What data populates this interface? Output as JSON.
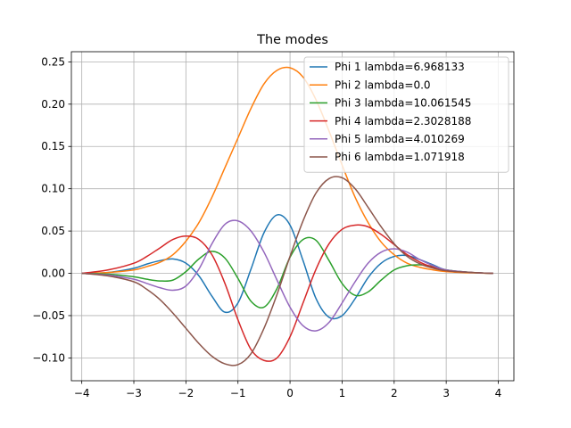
{
  "chart_data": {
    "type": "line",
    "title": "The modes",
    "xlabel": "",
    "ylabel": "",
    "xlim": [
      -4.2,
      4.3
    ],
    "ylim": [
      -0.127,
      0.262
    ],
    "xticks": [
      -4,
      -3,
      -2,
      -1,
      0,
      1,
      2,
      3,
      4
    ],
    "xtick_labels": [
      "−4",
      "−3",
      "−2",
      "−1",
      "0",
      "1",
      "2",
      "3",
      "4"
    ],
    "yticks": [
      -0.1,
      -0.05,
      0.0,
      0.05,
      0.1,
      0.15,
      0.2,
      0.25
    ],
    "ytick_labels": [
      "−0.10",
      "−0.05",
      "0.00",
      "0.05",
      "0.10",
      "0.15",
      "0.20",
      "0.25"
    ],
    "grid": true,
    "legend_position": "top-right",
    "x": [
      -4.0,
      -3.5,
      -3.0,
      -2.75,
      -2.5,
      -2.25,
      -2.0,
      -1.75,
      -1.5,
      -1.25,
      -1.0,
      -0.75,
      -0.5,
      -0.25,
      0.0,
      0.25,
      0.5,
      0.75,
      1.0,
      1.25,
      1.5,
      1.75,
      2.0,
      2.25,
      2.5,
      2.75,
      3.0,
      3.5,
      3.9
    ],
    "series": [
      {
        "name": "Phi 1 lambda=6.968133",
        "color": "#1f77b4",
        "values": [
          0.0,
          0.001,
          0.006,
          0.011,
          0.015,
          0.017,
          0.012,
          -0.003,
          -0.027,
          -0.046,
          -0.035,
          0.005,
          0.048,
          0.069,
          0.057,
          0.015,
          -0.03,
          -0.052,
          -0.05,
          -0.03,
          -0.005,
          0.012,
          0.02,
          0.021,
          0.016,
          0.01,
          0.004,
          0.001,
          0.0
        ]
      },
      {
        "name": "Phi 2 lambda=0.0",
        "color": "#ff7f0e",
        "values": [
          0.0,
          0.001,
          0.004,
          0.008,
          0.013,
          0.022,
          0.038,
          0.06,
          0.09,
          0.125,
          0.16,
          0.195,
          0.224,
          0.24,
          0.243,
          0.232,
          0.205,
          0.168,
          0.128,
          0.09,
          0.06,
          0.037,
          0.022,
          0.012,
          0.007,
          0.004,
          0.002,
          0.0005,
          0.0
        ]
      },
      {
        "name": "Phi 3 lambda=10.061545",
        "color": "#2ca02c",
        "values": [
          0.0,
          -0.001,
          -0.004,
          -0.007,
          -0.009,
          -0.008,
          0.002,
          0.017,
          0.026,
          0.018,
          -0.006,
          -0.033,
          -0.04,
          -0.018,
          0.019,
          0.04,
          0.039,
          0.015,
          -0.012,
          -0.026,
          -0.022,
          -0.008,
          0.004,
          0.009,
          0.01,
          0.008,
          0.004,
          0.001,
          0.0
        ]
      },
      {
        "name": "Phi 4 lambda=2.3028188",
        "color": "#d62728",
        "values": [
          0.0,
          0.004,
          0.012,
          0.02,
          0.03,
          0.04,
          0.044,
          0.04,
          0.022,
          -0.012,
          -0.055,
          -0.09,
          -0.103,
          -0.1,
          -0.075,
          -0.035,
          0.005,
          0.035,
          0.052,
          0.057,
          0.055,
          0.046,
          0.034,
          0.022,
          0.013,
          0.007,
          0.003,
          0.001,
          0.0
        ]
      },
      {
        "name": "Phi 5 lambda=4.010269",
        "color": "#9467bd",
        "values": [
          0.0,
          -0.002,
          -0.007,
          -0.012,
          -0.017,
          -0.02,
          -0.015,
          0.005,
          0.035,
          0.058,
          0.062,
          0.05,
          0.025,
          -0.008,
          -0.04,
          -0.062,
          -0.068,
          -0.058,
          -0.035,
          -0.01,
          0.012,
          0.025,
          0.029,
          0.025,
          0.016,
          0.009,
          0.004,
          0.001,
          0.0
        ]
      },
      {
        "name": "Phi 6 lambda=1.071918",
        "color": "#8c564b",
        "values": [
          0.0,
          -0.003,
          -0.01,
          -0.019,
          -0.031,
          -0.047,
          -0.065,
          -0.083,
          -0.098,
          -0.107,
          -0.108,
          -0.095,
          -0.065,
          -0.025,
          0.02,
          0.062,
          0.095,
          0.112,
          0.113,
          0.1,
          0.078,
          0.055,
          0.035,
          0.02,
          0.011,
          0.006,
          0.003,
          0.001,
          0.0
        ]
      }
    ]
  }
}
